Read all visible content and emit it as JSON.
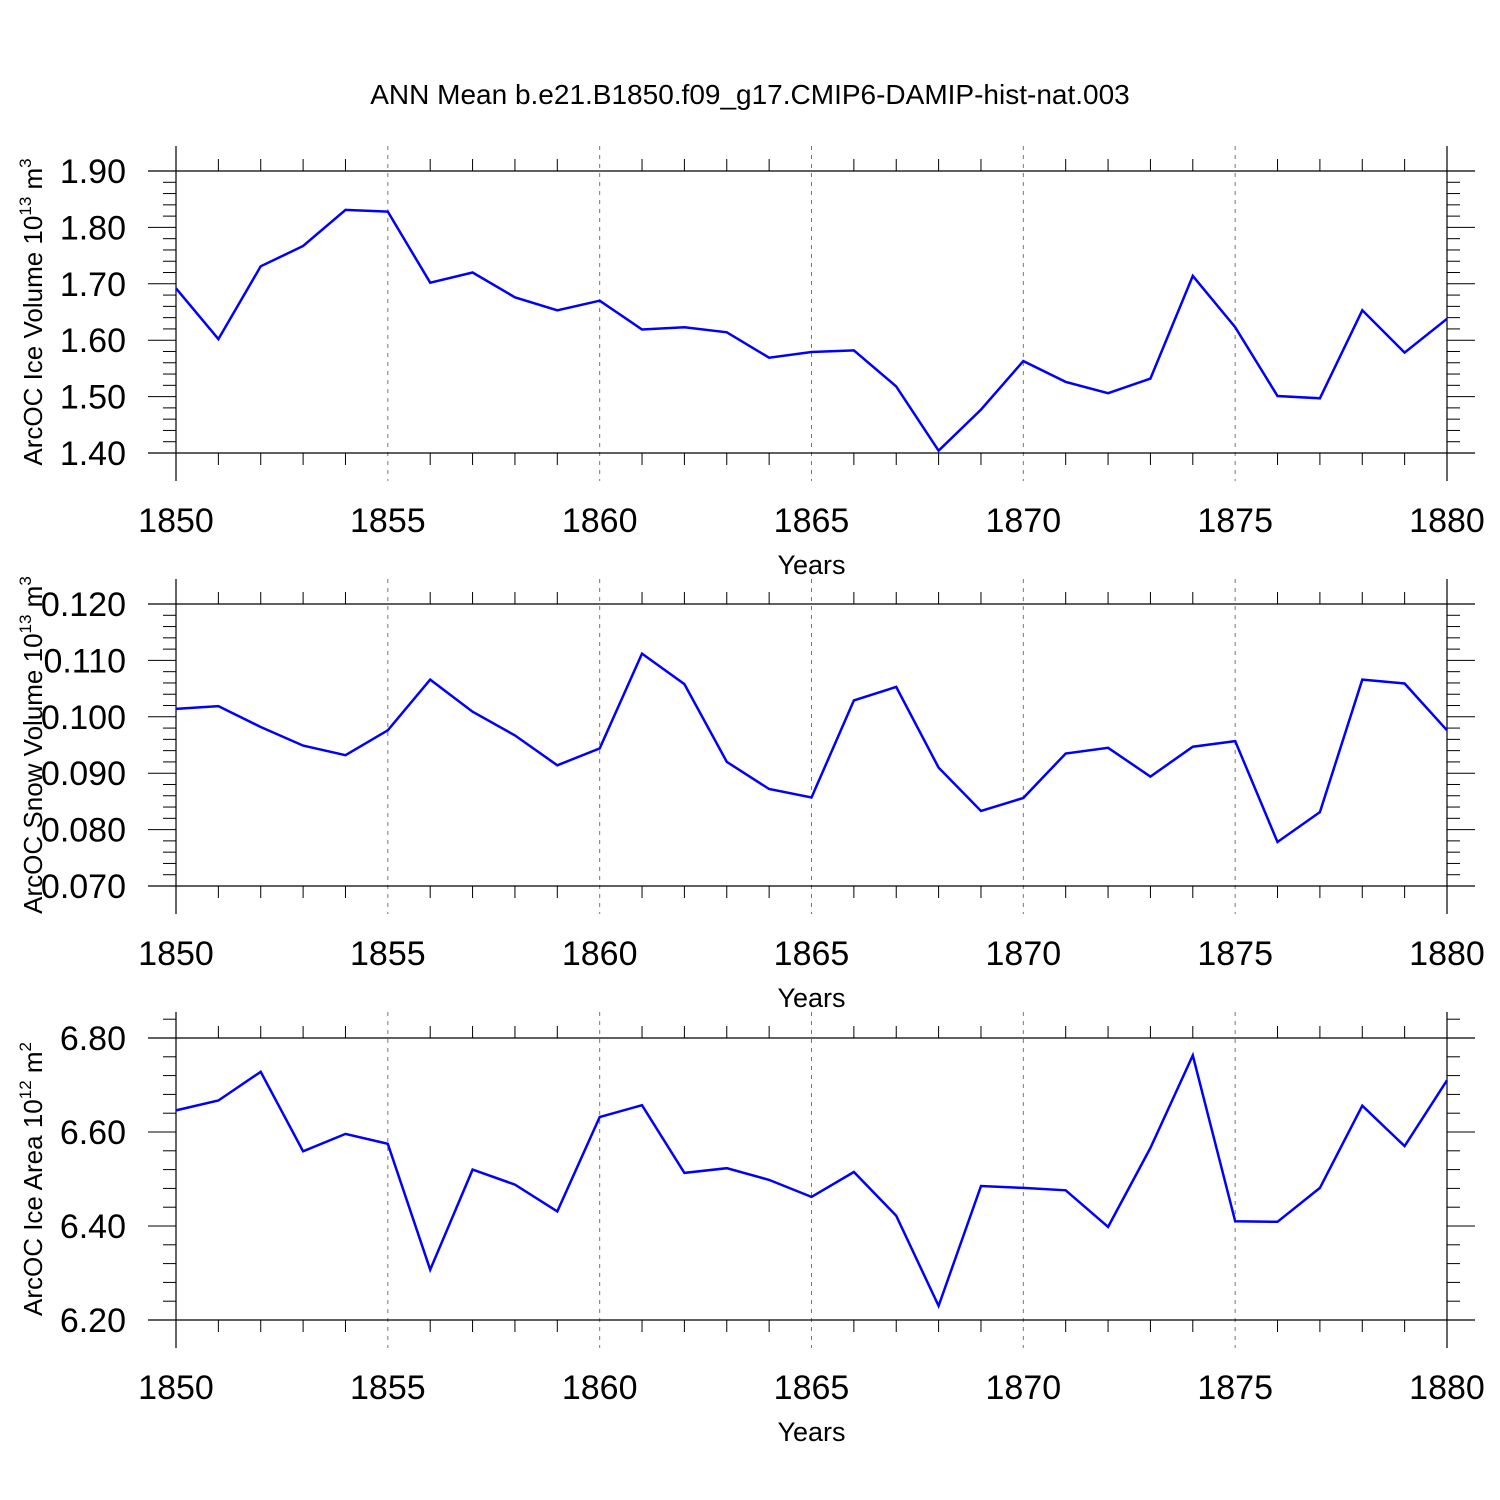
{
  "title": "ANN Mean b.e21.B1850.f09_g17.CMIP6-DAMIP-hist-nat.003",
  "colors": {
    "line": "#0000ff",
    "axis": "#000000",
    "grid": "#777777"
  },
  "chart_data": [
    {
      "type": "line",
      "ylabel": {
        "main": "ArcOC Ice Volume 10",
        "exp": "13",
        "unit": " m",
        "unit_exp": "3"
      },
      "xlabel": "Years",
      "xlim": [
        1850,
        1880
      ],
      "ylim": [
        1.4,
        1.9
      ],
      "ymajor": [
        1.4,
        1.5,
        1.6,
        1.7,
        1.8,
        1.9
      ],
      "ytick_labels": [
        "1.40",
        "1.50",
        "1.60",
        "1.70",
        "1.80",
        "1.90"
      ],
      "xticks": [
        1850,
        1855,
        1860,
        1865,
        1870,
        1875,
        1880
      ],
      "xtick_labels": [
        "1850",
        "1855",
        "1860",
        "1865",
        "1870",
        "1875",
        "1880"
      ],
      "grid": "vertical dashed at major x ticks",
      "series": [
        {
          "x": [
            1850,
            1851,
            1852,
            1853,
            1854,
            1855,
            1856,
            1857,
            1858,
            1859,
            1860,
            1861,
            1862,
            1863,
            1864,
            1865,
            1866,
            1867,
            1868,
            1869,
            1870,
            1871,
            1872,
            1873,
            1874,
            1875,
            1876,
            1877,
            1878,
            1879,
            1880
          ],
          "values": [
            1.692,
            1.602,
            1.731,
            1.767,
            1.831,
            1.828,
            1.702,
            1.72,
            1.676,
            1.653,
            1.67,
            1.619,
            1.623,
            1.614,
            1.569,
            1.579,
            1.582,
            1.518,
            1.404,
            1.477,
            1.563,
            1.526,
            1.506,
            1.532,
            1.714,
            1.623,
            1.501,
            1.497,
            1.653,
            1.578,
            1.638
          ]
        }
      ]
    },
    {
      "type": "line",
      "ylabel": {
        "main": "ArcOC Snow Volume 10",
        "exp": "13",
        "unit": " m",
        "unit_exp": "3"
      },
      "xlabel": "Years",
      "xlim": [
        1850,
        1880
      ],
      "ylim": [
        0.07,
        0.12
      ],
      "ymajor": [
        0.07,
        0.08,
        0.09,
        0.1,
        0.11,
        0.12
      ],
      "ytick_labels": [
        "0.070",
        "0.080",
        "0.090",
        "0.100",
        "0.110",
        "0.120"
      ],
      "xticks": [
        1850,
        1855,
        1860,
        1865,
        1870,
        1875,
        1880
      ],
      "xtick_labels": [
        "1850",
        "1855",
        "1860",
        "1865",
        "1870",
        "1875",
        "1880"
      ],
      "grid": "vertical dashed at major x ticks",
      "series": [
        {
          "x": [
            1850,
            1851,
            1852,
            1853,
            1854,
            1855,
            1856,
            1857,
            1858,
            1859,
            1860,
            1861,
            1862,
            1863,
            1864,
            1865,
            1866,
            1867,
            1868,
            1869,
            1870,
            1871,
            1872,
            1873,
            1874,
            1875,
            1876,
            1877,
            1878,
            1879,
            1880
          ],
          "values": [
            0.1014,
            0.1019,
            0.0982,
            0.0949,
            0.0932,
            0.0976,
            0.1066,
            0.1009,
            0.0967,
            0.0914,
            0.0944,
            0.1112,
            0.1058,
            0.092,
            0.0872,
            0.0857,
            0.1029,
            0.1053,
            0.091,
            0.0833,
            0.0856,
            0.0935,
            0.0945,
            0.0894,
            0.0947,
            0.0957,
            0.0778,
            0.0831,
            0.1066,
            0.1059,
            0.0976
          ]
        }
      ]
    },
    {
      "type": "line",
      "ylabel": {
        "main": "ArcOC Ice Area 10",
        "exp": "12",
        "unit": " m",
        "unit_exp": "2"
      },
      "xlabel": "Years",
      "xlim": [
        1850,
        1880
      ],
      "ylim": [
        6.2,
        6.86
      ],
      "ymajor": [
        6.2,
        6.4,
        6.6,
        6.8
      ],
      "ytick_labels": [
        "6.20",
        "6.40",
        "6.60",
        "6.80"
      ],
      "xticks": [
        1850,
        1855,
        1860,
        1865,
        1870,
        1875,
        1880
      ],
      "xtick_labels": [
        "1850",
        "1855",
        "1860",
        "1865",
        "1870",
        "1875",
        "1880"
      ],
      "grid": "vertical dashed at major x ticks",
      "series": [
        {
          "x": [
            1850,
            1851,
            1852,
            1853,
            1854,
            1855,
            1856,
            1857,
            1858,
            1859,
            1860,
            1861,
            1862,
            1863,
            1864,
            1865,
            1866,
            1867,
            1868,
            1869,
            1870,
            1871,
            1872,
            1873,
            1874,
            1875,
            1876,
            1877,
            1878,
            1879,
            1880
          ],
          "values": [
            6.646,
            6.667,
            6.728,
            6.559,
            6.596,
            6.575,
            6.307,
            6.52,
            6.488,
            6.431,
            6.632,
            6.657,
            6.513,
            6.523,
            6.498,
            6.462,
            6.515,
            6.422,
            6.23,
            6.485,
            6.481,
            6.476,
            6.398,
            6.566,
            6.763,
            6.41,
            6.409,
            6.481,
            6.656,
            6.57,
            6.71
          ]
        }
      ]
    }
  ]
}
